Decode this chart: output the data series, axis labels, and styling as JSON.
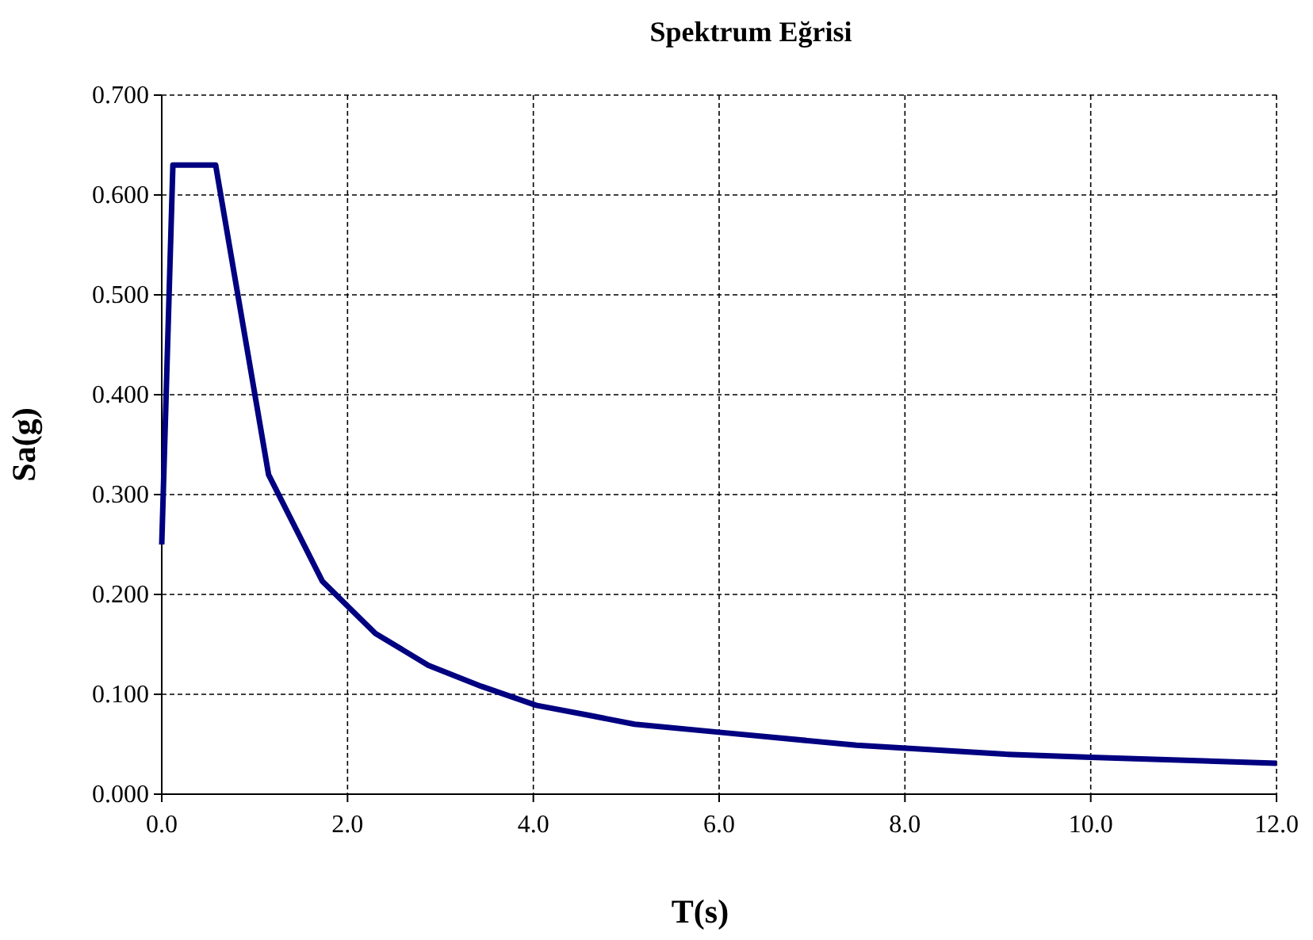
{
  "chart_data": {
    "type": "line",
    "title": "Spektrum Eğrisi",
    "xlabel": "T(s)",
    "ylabel": "Sa(g)",
    "x": [
      0,
      0.12,
      0.58,
      1.15,
      1.73,
      2.3,
      2.87,
      3.44,
      4.03,
      4.6,
      5.09,
      6.0,
      7.48,
      9.08,
      10.0,
      12.0
    ],
    "series": [
      {
        "color": "#000080",
        "values": [
          0.25,
          0.63,
          0.63,
          0.32,
          0.213,
          0.161,
          0.129,
          0.108,
          0.089,
          0.079,
          0.07,
          0.062,
          0.049,
          0.04,
          0.037,
          0.031
        ]
      }
    ],
    "xlim": [
      0,
      12
    ],
    "xticks": [
      {
        "value": 0,
        "label": "0.0"
      },
      {
        "value": 2,
        "label": "2.0"
      },
      {
        "value": 4,
        "label": "4.0"
      },
      {
        "value": 6,
        "label": "6.0"
      },
      {
        "value": 8,
        "label": "8.0"
      },
      {
        "value": 10,
        "label": "10.0"
      },
      {
        "value": 12,
        "label": "12.0"
      }
    ],
    "ylim": [
      0,
      0.7
    ],
    "yticks": [
      {
        "value": 0,
        "label": "0.000"
      },
      {
        "value": 0.1,
        "label": "0.100"
      },
      {
        "value": 0.2,
        "label": "0.200"
      },
      {
        "value": 0.3,
        "label": "0.300"
      },
      {
        "value": 0.4,
        "label": "0.400"
      },
      {
        "value": 0.5,
        "label": "0.500"
      },
      {
        "value": 0.6,
        "label": "0.600"
      },
      {
        "value": 0.7,
        "label": "0.700"
      }
    ],
    "grid": true,
    "marker": "none",
    "line_style": "solid"
  }
}
